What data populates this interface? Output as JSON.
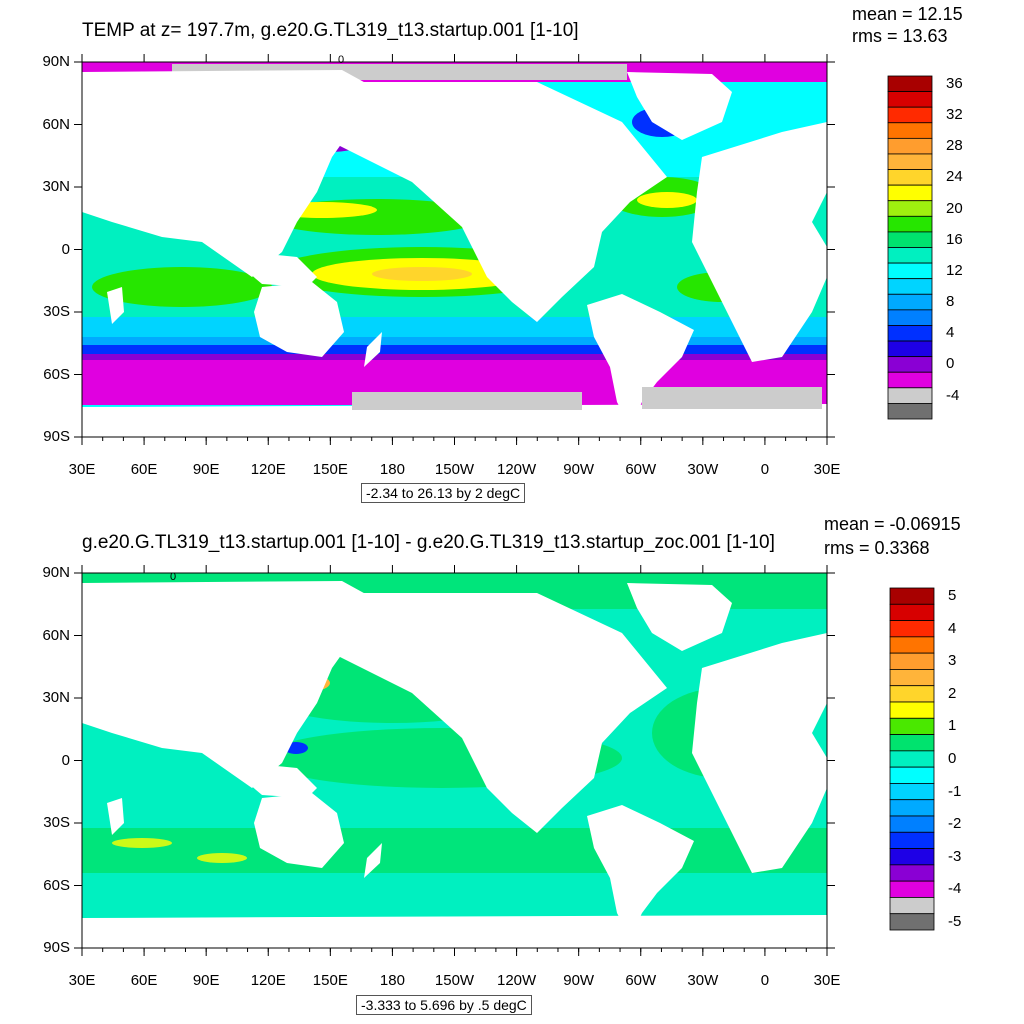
{
  "axes": {
    "lon_ticks": [
      "30E",
      "60E",
      "90E",
      "120E",
      "150E",
      "180",
      "150W",
      "120W",
      "90W",
      "60W",
      "30W",
      "0",
      "30E"
    ],
    "lat_ticks": [
      "90N",
      "60N",
      "30N",
      "0",
      "30S",
      "60S",
      "90S"
    ]
  },
  "panels": [
    {
      "title": "TEMP at z= 197.7m, g.e20.G.TL319_t13.startup.001 [1-10]",
      "mean": "mean = 12.15",
      "rms": "rms = 13.63",
      "range_note": "-2.34 to 26.13 by 2 degC",
      "contour_label": "0",
      "colorbar": {
        "labels": [
          "36",
          "32",
          "28",
          "24",
          "20",
          "16",
          "12",
          "8",
          "4",
          "0",
          "-4"
        ],
        "colors_top_to_bottom": [
          "#a80000",
          "#d70000",
          "#ff2a00",
          "#ff7400",
          "#ff9d2e",
          "#ffb43a",
          "#ffd52b",
          "#ffff00",
          "#9ff00f",
          "#26e600",
          "#00e36e",
          "#00f0c0",
          "#00ffff",
          "#00d4ff",
          "#00aaff",
          "#0080ff",
          "#0030ff",
          "#1e00e6",
          "#8a00d4",
          "#e000e0",
          "#cccccc",
          "#707070"
        ]
      }
    },
    {
      "title": "g.e20.G.TL319_t13.startup.001 [1-10] - g.e20.G.TL319_t13.startup_zoc.001 [1-10]",
      "mean": "mean = -0.06915",
      "rms": "rms = 0.3368",
      "range_note": "-3.333 to 5.696 by .5 degC",
      "contour_label": "0",
      "colorbar": {
        "labels": [
          "5",
          "4",
          "3",
          "2",
          "1",
          "0",
          "-1",
          "-2",
          "-3",
          "-4",
          "-5"
        ],
        "colors_top_to_bottom": [
          "#a80000",
          "#d70000",
          "#ff2a00",
          "#ff7400",
          "#ff9d2e",
          "#ffb43a",
          "#ffd52b",
          "#ffff00",
          "#4ae800",
          "#00e36e",
          "#00f0c0",
          "#00ffff",
          "#00d4ff",
          "#00aaff",
          "#0080ff",
          "#0030ff",
          "#1e00e6",
          "#8a00d4",
          "#e000e0",
          "#cccccc",
          "#707070"
        ]
      }
    }
  ]
}
